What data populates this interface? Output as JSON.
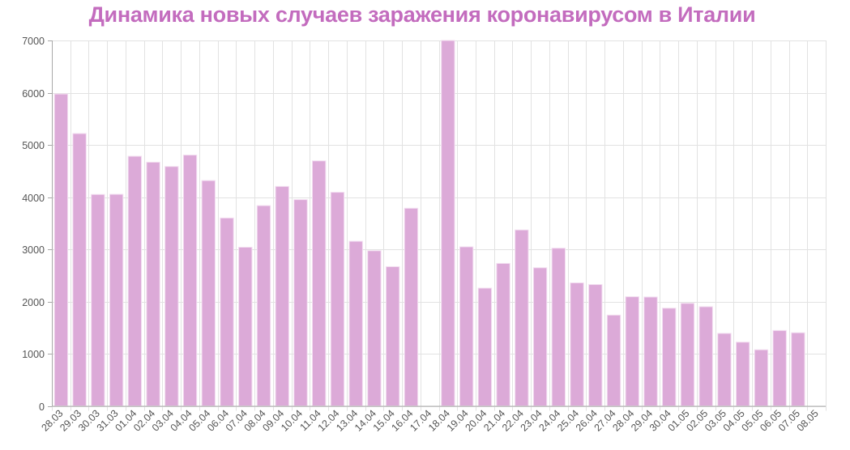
{
  "title": "Динамика новых случаев заражения коронавирусом в Италии",
  "colors": {
    "title": "#c36cbe",
    "bar": "#dcaad8",
    "bar_stroke": "#f3def1",
    "grid": "#e2e2e2",
    "axis": "#a8a8a8",
    "tick_label": "#555555"
  },
  "chart_data": {
    "type": "bar",
    "title": "Динамика новых случаев заражения коронавирусом в Италии",
    "xlabel": "",
    "ylabel": "",
    "ylim": [
      0,
      7000
    ],
    "yticks": [
      0,
      1000,
      2000,
      3000,
      4000,
      5000,
      6000,
      7000
    ],
    "grid": true,
    "legend": null,
    "categories": [
      "28.03",
      "29.03",
      "30.03",
      "31.03",
      "01.04",
      "02.04",
      "03.04",
      "04.04",
      "05.04",
      "06.04",
      "07.04",
      "08.04",
      "09.04",
      "10.04",
      "11.04",
      "12.04",
      "13.04",
      "14.04",
      "15.04",
      "16.04",
      "17.04",
      "18.04",
      "19.04",
      "20.04",
      "21.04",
      "22.04",
      "23.04",
      "24.04",
      "25.04",
      "26.04",
      "27.04",
      "28.04",
      "29.04",
      "30.04",
      "01.05",
      "02.05",
      "03.05",
      "04.05",
      "05.05",
      "06.05",
      "07.05",
      "08.05"
    ],
    "values": [
      5974,
      5217,
      4050,
      4053,
      4782,
      4668,
      4585,
      4805,
      4316,
      3599,
      3039,
      3836,
      4204,
      3951,
      4694,
      4092,
      3153,
      2972,
      2667,
      3786,
      null,
      7000,
      3047,
      2256,
      2729,
      3370,
      2646,
      3021,
      2357,
      2324,
      1739,
      2091,
      2086,
      1872,
      1965,
      1900,
      1389,
      1221,
      1075,
      1444,
      1401,
      null
    ]
  }
}
